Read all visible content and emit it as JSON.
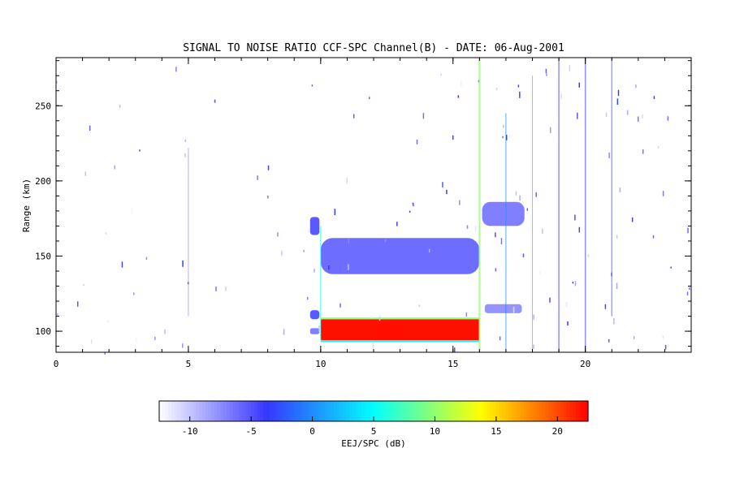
{
  "chart_data": {
    "type": "heatmap",
    "title": "SIGNAL TO NOISE RATIO CCF-SPC Channel(B) - DATE: 06-Aug-2001",
    "xlabel": "",
    "ylabel": "Range (km)",
    "xlim": [
      0,
      24
    ],
    "ylim": [
      86,
      282
    ],
    "x_ticks": [
      0,
      5,
      10,
      15,
      20
    ],
    "y_ticks": [
      100,
      150,
      200,
      250
    ],
    "colorbar": {
      "label": "EEJ/SPC (dB)",
      "range": [
        -12.5,
        22.5
      ],
      "ticks": [
        -10,
        -5,
        0,
        5,
        10,
        15,
        20
      ],
      "colors": [
        "#ffffff",
        "#3636ff",
        "#00ffff",
        "#ffff00",
        "#ff0000"
      ]
    },
    "features": [
      {
        "x0": 10.0,
        "x1": 16.0,
        "y0": 94,
        "y1": 108,
        "snr_db": 22
      },
      {
        "x0": 9.6,
        "x1": 9.95,
        "y0": 164,
        "y1": 176,
        "snr_db": -4
      },
      {
        "x0": 9.6,
        "x1": 9.95,
        "y0": 108,
        "y1": 114,
        "snr_db": -4
      },
      {
        "x0": 9.6,
        "x1": 9.95,
        "y0": 98,
        "y1": 102,
        "snr_db": -6
      },
      {
        "x0": 10.0,
        "x1": 16.0,
        "y0": 138,
        "y1": 162,
        "snr_db": -5
      },
      {
        "x0": 16.1,
        "x1": 17.7,
        "y0": 170,
        "y1": 186,
        "snr_db": -6
      },
      {
        "x0": 16.2,
        "x1": 17.6,
        "y0": 112,
        "y1": 118,
        "snr_db": -7
      }
    ]
  }
}
